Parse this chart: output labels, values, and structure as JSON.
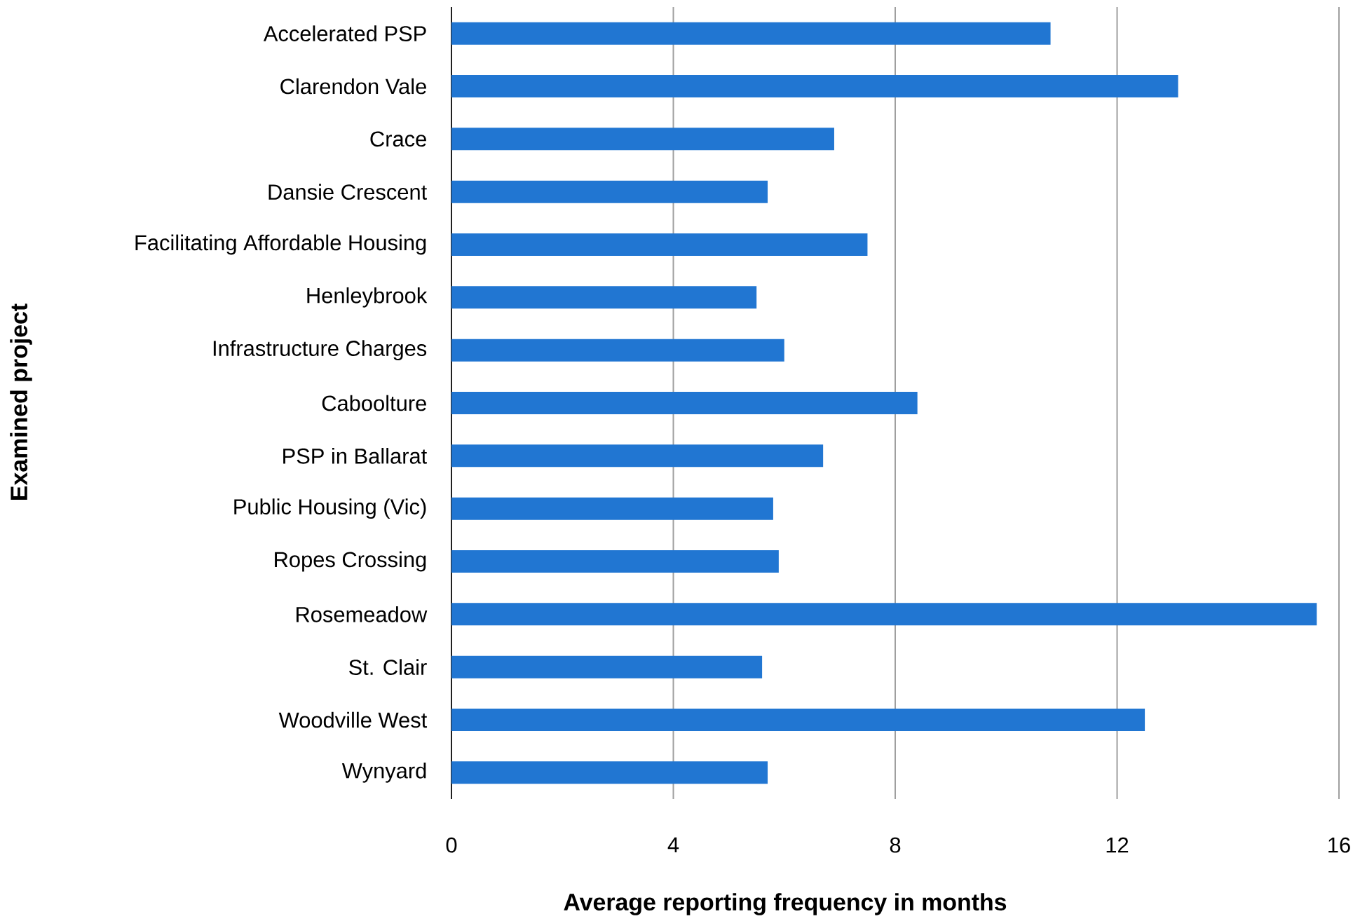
{
  "chart_data": {
    "type": "bar",
    "orientation": "horizontal",
    "xlabel": "Average reporting frequency in months",
    "ylabel": "Examined project",
    "categories": [
      "Accelerated PSP",
      "Clarendon Vale",
      "Crace",
      "Dansie Crescent",
      "Facilitating Affordable Housing",
      "Henleybrook",
      "Infrastructure Charges",
      "Caboolture",
      "PSP in Ballarat",
      "Public Housing (Vic)",
      "Ropes Crossing",
      "Rosemeadow",
      "St. Clair",
      "Woodville West",
      "Wynyard"
    ],
    "values": [
      10.8,
      13.1,
      6.9,
      5.7,
      7.5,
      5.5,
      6.0,
      8.4,
      6.7,
      5.8,
      5.9,
      15.6,
      5.6,
      12.5,
      5.7
    ],
    "color": "#2176d2",
    "xlim": [
      0,
      16
    ],
    "xticks": [
      0,
      4,
      8,
      12,
      16
    ],
    "grid": "x"
  }
}
